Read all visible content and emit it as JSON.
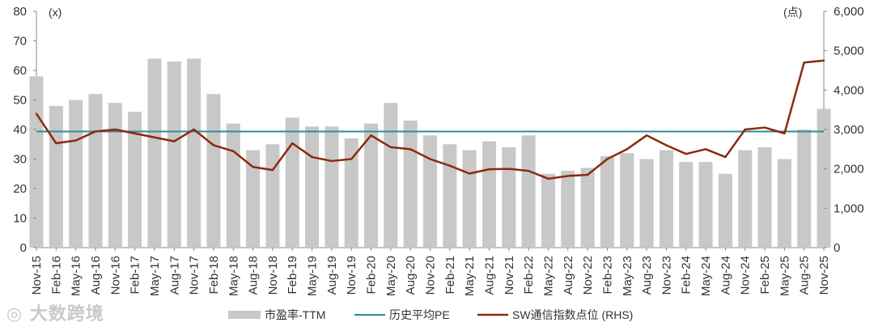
{
  "chart_data": {
    "type": "bar+line",
    "left_unit": "(x)",
    "right_unit": "(点)",
    "yticks_left": [
      "0",
      "10",
      "20",
      "30",
      "40",
      "50",
      "60",
      "70",
      "80"
    ],
    "yticks_right": [
      "0",
      "1,000",
      "2,000",
      "3,000",
      "4,000",
      "5,000",
      "6,000"
    ],
    "ylim_left": [
      0,
      80
    ],
    "ylim_right": [
      0,
      6000
    ],
    "x_ticks": [
      "Nov-15",
      "Feb-16",
      "May-16",
      "Aug-16",
      "Nov-16",
      "Feb-17",
      "May-17",
      "Aug-17",
      "Nov-17",
      "Feb-18",
      "May-18",
      "Aug-18",
      "Nov-18",
      "Feb-19",
      "May-19",
      "Aug-19",
      "Nov-19",
      "Feb-20",
      "May-20",
      "Aug-20",
      "Nov-20",
      "Feb-21",
      "May-21",
      "Aug-21",
      "Nov-21",
      "Feb-22",
      "May-22",
      "Aug-22",
      "Nov-22",
      "Feb-23",
      "May-23",
      "Aug-23",
      "Nov-23",
      "Feb-24",
      "May-24",
      "Aug-24",
      "Nov-24",
      "Feb-25",
      "May-25",
      "Aug-25",
      "Nov-25"
    ],
    "series": [
      {
        "name": "市盈率-TTM",
        "axis": "left",
        "color": "#c8c8c8",
        "values": [
          58,
          48,
          50,
          52,
          49,
          46,
          64,
          63,
          64,
          52,
          42,
          33,
          35,
          44,
          41,
          41,
          37,
          42,
          49,
          43,
          38,
          35,
          33,
          36,
          34,
          38,
          25,
          26,
          27,
          31,
          32,
          30,
          33,
          29,
          29,
          25,
          33,
          34,
          30,
          40,
          47
        ]
      },
      {
        "name": "历史平均PE",
        "axis": "left",
        "color": "#2e8b9e",
        "values": [
          39.3,
          39.3,
          39.3,
          39.3,
          39.3,
          39.3,
          39.3,
          39.3,
          39.3,
          39.3,
          39.3,
          39.3,
          39.3,
          39.3,
          39.3,
          39.3,
          39.3,
          39.3,
          39.3,
          39.3,
          39.3,
          39.3,
          39.3,
          39.3,
          39.3,
          39.3,
          39.3,
          39.3,
          39.3,
          39.3,
          39.3,
          39.3,
          39.3,
          39.3,
          39.3,
          39.3,
          39.3,
          39.3,
          39.3,
          39.3,
          39.3
        ]
      },
      {
        "name": "SW通信指数点位 (RHS)",
        "axis": "right",
        "color": "#8b2a0f",
        "values": [
          3400,
          2650,
          2720,
          2950,
          3000,
          2900,
          2800,
          2700,
          3000,
          2600,
          2450,
          2050,
          1970,
          2650,
          2300,
          2200,
          2250,
          2850,
          2550,
          2500,
          2250,
          2080,
          1880,
          1990,
          2000,
          1950,
          1750,
          1820,
          1850,
          2250,
          2500,
          2850,
          2600,
          2380,
          2500,
          2300,
          3000,
          3050,
          2900,
          4700,
          4750
        ]
      }
    ],
    "legend_position": "bottom"
  }
}
